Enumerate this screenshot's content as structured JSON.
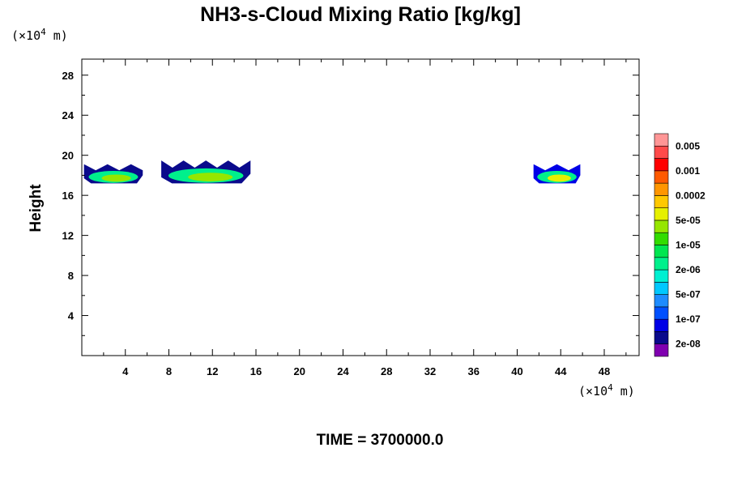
{
  "chart_data": {
    "type": "heatmap",
    "title": "NH3-s-Cloud Mixing Ratio [kg/kg]",
    "xlabel": "",
    "ylabel": "Height",
    "x_unit": {
      "prefix": "(×10",
      "exp": "4",
      "suffix": " m)"
    },
    "y_unit": {
      "prefix": "(×10",
      "exp": "4",
      "suffix": " m)"
    },
    "xlim": [
      0,
      51.2
    ],
    "ylim": [
      0,
      29.6
    ],
    "x_ticks": [
      4,
      8,
      12,
      16,
      20,
      24,
      28,
      32,
      36,
      40,
      44,
      48
    ],
    "y_ticks": [
      4,
      8,
      12,
      16,
      20,
      24,
      28
    ],
    "footer": "TIME = 3700000.0",
    "colorbar": {
      "colors": [
        "#8000b0",
        "#0a0a8c",
        "#0000e6",
        "#0050ff",
        "#1e8cff",
        "#00c8ff",
        "#00f0d2",
        "#00f08c",
        "#00e650",
        "#32dc00",
        "#96e600",
        "#e6f000",
        "#ffc800",
        "#ff9600",
        "#ff5a00",
        "#ff0000",
        "#ff4a4a",
        "#ff9696"
      ],
      "labels": [
        "2e-08",
        "1e-07",
        "5e-07",
        "2e-06",
        "1e-05",
        "5e-05",
        "0.0002",
        "0.001",
        "0.005"
      ]
    },
    "clouds": [
      {
        "x_range": [
          0.2,
          5.6
        ],
        "y_range": [
          17.2,
          19.2
        ],
        "outer_color": "#0a0a8c",
        "inner_color": "#00f08c",
        "core_color": "#96e600"
      },
      {
        "x_range": [
          7.3,
          15.5
        ],
        "y_range": [
          17.2,
          19.6
        ],
        "outer_color": "#0a0a8c",
        "inner_color": "#00f08c",
        "core_color": "#96e600"
      },
      {
        "x_range": [
          41.5,
          45.8
        ],
        "y_range": [
          17.2,
          19.2
        ],
        "outer_color": "#0000e6",
        "inner_color": "#00f08c",
        "core_color": "#e6f000"
      }
    ]
  }
}
